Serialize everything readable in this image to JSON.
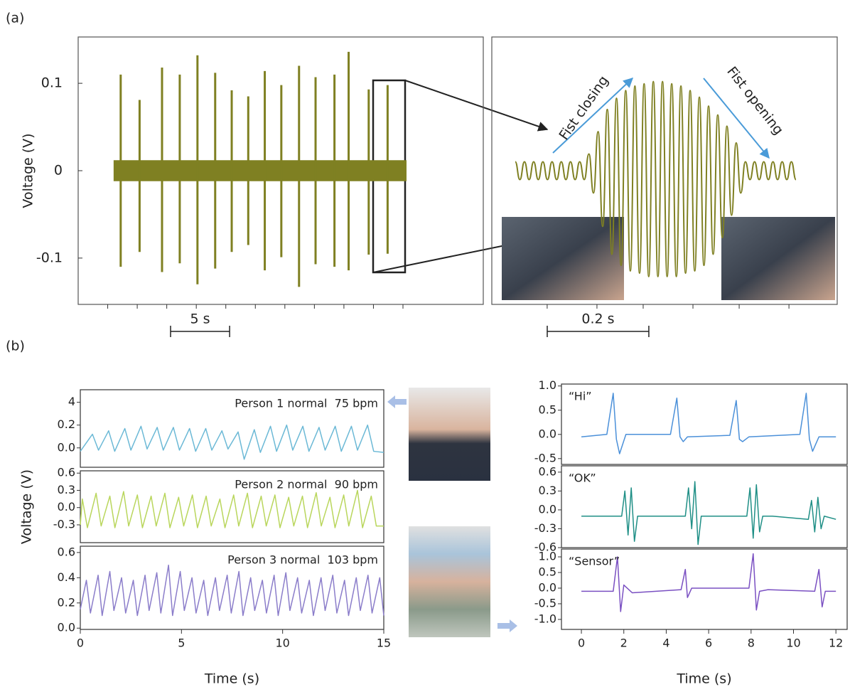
{
  "panel_labels": [
    "(a)",
    "(b)"
  ],
  "chart_data": [
    {
      "type": "spikes",
      "ylabel": "Voltage (V)",
      "color": "#7f8022",
      "xlim": [
        0,
        34.3
      ],
      "xticks": [
        2.5,
        5,
        7.5,
        10,
        12.5,
        15,
        17.5,
        20,
        22.5,
        25,
        27.5
      ],
      "ylim": [
        -0.153,
        0.153
      ],
      "yticks": [
        0.1,
        0,
        -0.1
      ],
      "baseline_x": [
        3.0,
        27.8
      ],
      "spike_x": [
        3.6,
        5.2,
        7.1,
        8.6,
        10.1,
        11.6,
        13.0,
        14.4,
        15.8,
        17.2,
        18.7,
        20.1,
        21.7,
        22.9,
        24.6,
        26.2
      ],
      "spike_high": [
        0.11,
        0.081,
        0.118,
        0.11,
        0.132,
        0.112,
        0.092,
        0.085,
        0.114,
        0.098,
        0.12,
        0.107,
        0.11,
        0.136,
        0.093,
        0.098
      ],
      "spike_low": [
        -0.11,
        -0.093,
        -0.116,
        -0.106,
        -0.13,
        -0.112,
        -0.093,
        -0.085,
        -0.114,
        -0.099,
        -0.133,
        -0.107,
        -0.11,
        -0.114,
        -0.096,
        -0.095
      ],
      "scalebar": {
        "label": "5 s",
        "value": 5
      }
    },
    {
      "type": "wave",
      "color": "#7f8022",
      "annotations": [
        "Fist closing",
        "Fist opening"
      ],
      "xlim": [
        0,
        0.68
      ],
      "xticks": [
        0.109,
        0.207,
        0.298,
        0.396,
        0.487,
        0.585
      ],
      "ylim": [
        -1.2,
        1.2
      ],
      "values": [
        0.08,
        -0.08,
        0.08,
        -0.08,
        0.08,
        -0.08,
        0.08,
        -0.08,
        0.08,
        -0.08,
        0.08,
        -0.08,
        0.08,
        -0.08,
        0.08,
        -0.08,
        0.15,
        -0.2,
        0.35,
        -0.5,
        0.55,
        -0.75,
        0.65,
        -0.85,
        0.72,
        -0.9,
        0.76,
        -0.92,
        0.78,
        -0.95,
        0.8,
        -0.95,
        0.8,
        -0.95,
        0.78,
        -0.95,
        0.76,
        -0.92,
        0.72,
        -0.9,
        0.66,
        -0.85,
        0.58,
        -0.75,
        0.5,
        -0.6,
        0.4,
        -0.4,
        0.25,
        -0.2,
        0.08,
        -0.08,
        0.08,
        -0.08,
        0.08,
        -0.08,
        0.08,
        -0.08,
        0.08,
        -0.08,
        0.08,
        -0.08
      ],
      "scalebar": {
        "label": "0.2 s",
        "value": 0.2
      }
    },
    {
      "type": "line",
      "color": "#6cb9d6",
      "annotation": "Person 1 normal  75 bpm",
      "xlim": [
        0,
        15
      ],
      "ylim": [
        -0.17,
        0.51
      ],
      "yticks": [
        0.4,
        0.2,
        {
          "value": 0,
          "label": "0.0"
        }
      ],
      "x": [
        0,
        0.6,
        0.9,
        1.4,
        1.7,
        2.2,
        2.5,
        3.0,
        3.3,
        3.8,
        4.1,
        4.6,
        4.9,
        5.4,
        5.7,
        6.2,
        6.5,
        7.0,
        7.3,
        7.8,
        8.1,
        8.6,
        8.9,
        9.4,
        9.7,
        10.2,
        10.5,
        11.0,
        11.3,
        11.8,
        12.1,
        12.6,
        12.9,
        13.4,
        13.7,
        14.2,
        14.5,
        15
      ],
      "values": [
        -0.03,
        0.12,
        -0.02,
        0.15,
        -0.03,
        0.17,
        -0.02,
        0.19,
        -0.01,
        0.18,
        -0.02,
        0.18,
        -0.02,
        0.17,
        -0.03,
        0.17,
        -0.02,
        0.15,
        -0.01,
        0.14,
        -0.1,
        0.16,
        -0.04,
        0.19,
        -0.03,
        0.2,
        -0.02,
        0.19,
        -0.03,
        0.18,
        -0.02,
        0.19,
        -0.03,
        0.19,
        -0.02,
        0.2,
        -0.03,
        -0.04
      ]
    },
    {
      "type": "line",
      "color": "#b9d65c",
      "annotation": "Person 2 normal  90 bpm",
      "ylabel": "Voltage (V)",
      "xlim": [
        0,
        15
      ],
      "ylim": [
        -0.61,
        0.64
      ],
      "yticks": [
        0.6,
        0.3,
        {
          "value": 0,
          "label": "0.0"
        },
        -0.3
      ],
      "x": [
        0,
        0.1,
        0.35,
        0.78,
        1.03,
        1.46,
        1.71,
        2.14,
        2.39,
        2.82,
        3.07,
        3.5,
        3.75,
        4.18,
        4.43,
        4.86,
        5.11,
        5.54,
        5.79,
        6.22,
        6.47,
        6.9,
        7.15,
        7.58,
        7.83,
        8.26,
        8.51,
        8.94,
        9.19,
        9.62,
        9.87,
        10.3,
        10.55,
        10.98,
        11.23,
        11.66,
        11.91,
        12.34,
        12.59,
        13.02,
        13.27,
        13.7,
        13.95,
        14.38,
        14.63,
        15
      ],
      "values": [
        -0.3,
        0.15,
        -0.35,
        0.25,
        -0.32,
        0.2,
        -0.35,
        0.28,
        -0.32,
        0.22,
        -0.35,
        0.2,
        -0.32,
        0.25,
        -0.35,
        0.18,
        -0.32,
        0.22,
        -0.35,
        0.2,
        -0.32,
        0.15,
        -0.35,
        0.22,
        -0.32,
        0.25,
        -0.35,
        0.2,
        -0.32,
        0.22,
        -0.35,
        0.18,
        -0.32,
        0.2,
        -0.35,
        0.26,
        -0.32,
        0.18,
        -0.35,
        0.22,
        -0.32,
        0.3,
        -0.35,
        0.2,
        -0.32,
        -0.32
      ]
    },
    {
      "type": "line",
      "color": "#8b7dca",
      "annotation": "Person 3 normal  103 bpm",
      "xlabel": "Time (s)",
      "xlim": [
        0,
        15
      ],
      "xticks": [
        0,
        5,
        10,
        15
      ],
      "ylim": [
        -0.01,
        0.65
      ],
      "yticks": [
        0.6,
        0.4,
        0.2,
        {
          "value": 0,
          "label": "0.0"
        }
      ],
      "x": [
        0,
        0.3,
        0.5,
        0.88,
        1.08,
        1.46,
        1.66,
        2.04,
        2.24,
        2.62,
        2.82,
        3.2,
        3.4,
        3.78,
        3.98,
        4.36,
        4.56,
        4.94,
        5.14,
        5.52,
        5.72,
        6.1,
        6.3,
        6.68,
        6.88,
        7.26,
        7.46,
        7.84,
        8.04,
        8.42,
        8.62,
        9.0,
        9.2,
        9.58,
        9.78,
        10.16,
        10.36,
        10.74,
        10.94,
        11.32,
        11.52,
        11.9,
        12.1,
        12.48,
        12.68,
        13.06,
        13.26,
        13.64,
        13.84,
        14.22,
        14.42,
        14.8,
        15.0
      ],
      "values": [
        0.15,
        0.38,
        0.12,
        0.42,
        0.1,
        0.45,
        0.14,
        0.4,
        0.12,
        0.38,
        0.1,
        0.42,
        0.14,
        0.44,
        0.12,
        0.5,
        0.1,
        0.45,
        0.14,
        0.4,
        0.12,
        0.38,
        0.1,
        0.4,
        0.14,
        0.42,
        0.12,
        0.45,
        0.1,
        0.4,
        0.14,
        0.38,
        0.12,
        0.42,
        0.1,
        0.44,
        0.14,
        0.4,
        0.12,
        0.38,
        0.1,
        0.4,
        0.14,
        0.42,
        0.12,
        0.38,
        0.1,
        0.4,
        0.14,
        0.42,
        0.12,
        0.4,
        0.1
      ]
    },
    {
      "type": "line",
      "color": "#4b90d9",
      "annotation": "“Hi”",
      "xlim": [
        -0.94,
        12.53
      ],
      "ylim": [
        -0.62,
        1.04
      ],
      "yticks": [
        {
          "value": 1,
          "label": "1.0"
        },
        0.5,
        {
          "value": 0,
          "label": "0.0"
        },
        -0.5
      ],
      "x": [
        0,
        1.2,
        1.5,
        1.65,
        1.8,
        2.1,
        4.2,
        4.5,
        4.65,
        4.8,
        5.0,
        7.0,
        7.3,
        7.45,
        7.6,
        7.9,
        10.3,
        10.6,
        10.75,
        10.9,
        11.2,
        12
      ],
      "values": [
        -0.05,
        0,
        0.85,
        -0.1,
        -0.4,
        0,
        0,
        0.75,
        -0.05,
        -0.15,
        -0.05,
        -0.02,
        0.7,
        -0.1,
        -0.15,
        -0.05,
        0,
        0.85,
        -0.1,
        -0.35,
        -0.05,
        -0.05
      ]
    },
    {
      "type": "line",
      "color": "#1f8f86",
      "annotation": "“OK”",
      "xlim": [
        -0.94,
        12.53
      ],
      "ylim": [
        -0.6,
        0.7
      ],
      "yticks": [
        0.6,
        0.3,
        {
          "value": 0,
          "label": "0.0"
        },
        -0.3,
        -0.6
      ],
      "x": [
        0,
        1.9,
        2.05,
        2.2,
        2.35,
        2.5,
        2.65,
        3.0,
        4.9,
        5.05,
        5.2,
        5.35,
        5.5,
        5.65,
        6.0,
        7.8,
        7.95,
        8.1,
        8.25,
        8.4,
        8.55,
        9.0,
        10.7,
        10.85,
        11.0,
        11.15,
        11.3,
        11.45,
        12
      ],
      "values": [
        -0.1,
        -0.1,
        0.3,
        -0.4,
        0.35,
        -0.5,
        -0.1,
        -0.1,
        -0.1,
        0.35,
        -0.3,
        0.45,
        -0.55,
        -0.1,
        -0.1,
        -0.1,
        0.35,
        -0.45,
        0.4,
        -0.35,
        -0.1,
        -0.1,
        -0.15,
        0.15,
        -0.35,
        0.2,
        -0.3,
        -0.1,
        -0.15
      ]
    },
    {
      "type": "line",
      "color": "#7a50c2",
      "annotation": "“Sensor”",
      "xlabel": "Time (s)",
      "xlim": [
        -0.94,
        12.53
      ],
      "xticks": [
        0,
        2,
        4,
        6,
        8,
        10,
        12
      ],
      "ylim": [
        -1.32,
        1.25
      ],
      "yticks": [
        {
          "value": 1,
          "label": "1.0"
        },
        0.5,
        {
          "value": 0,
          "label": "0.0"
        },
        -0.5,
        {
          "value": -1,
          "label": "-1.0"
        }
      ],
      "x": [
        0,
        1.5,
        1.7,
        1.85,
        2.0,
        2.4,
        4.7,
        4.9,
        5.0,
        5.2,
        7.9,
        8.1,
        8.25,
        8.4,
        8.8,
        11.0,
        11.2,
        11.35,
        11.5,
        12
      ],
      "values": [
        -0.1,
        -0.1,
        1.0,
        -0.75,
        0.1,
        -0.15,
        -0.05,
        0.6,
        -0.3,
        0,
        0,
        1.1,
        -0.7,
        -0.1,
        -0.05,
        -0.1,
        0.6,
        -0.6,
        -0.1,
        -0.1
      ]
    }
  ]
}
